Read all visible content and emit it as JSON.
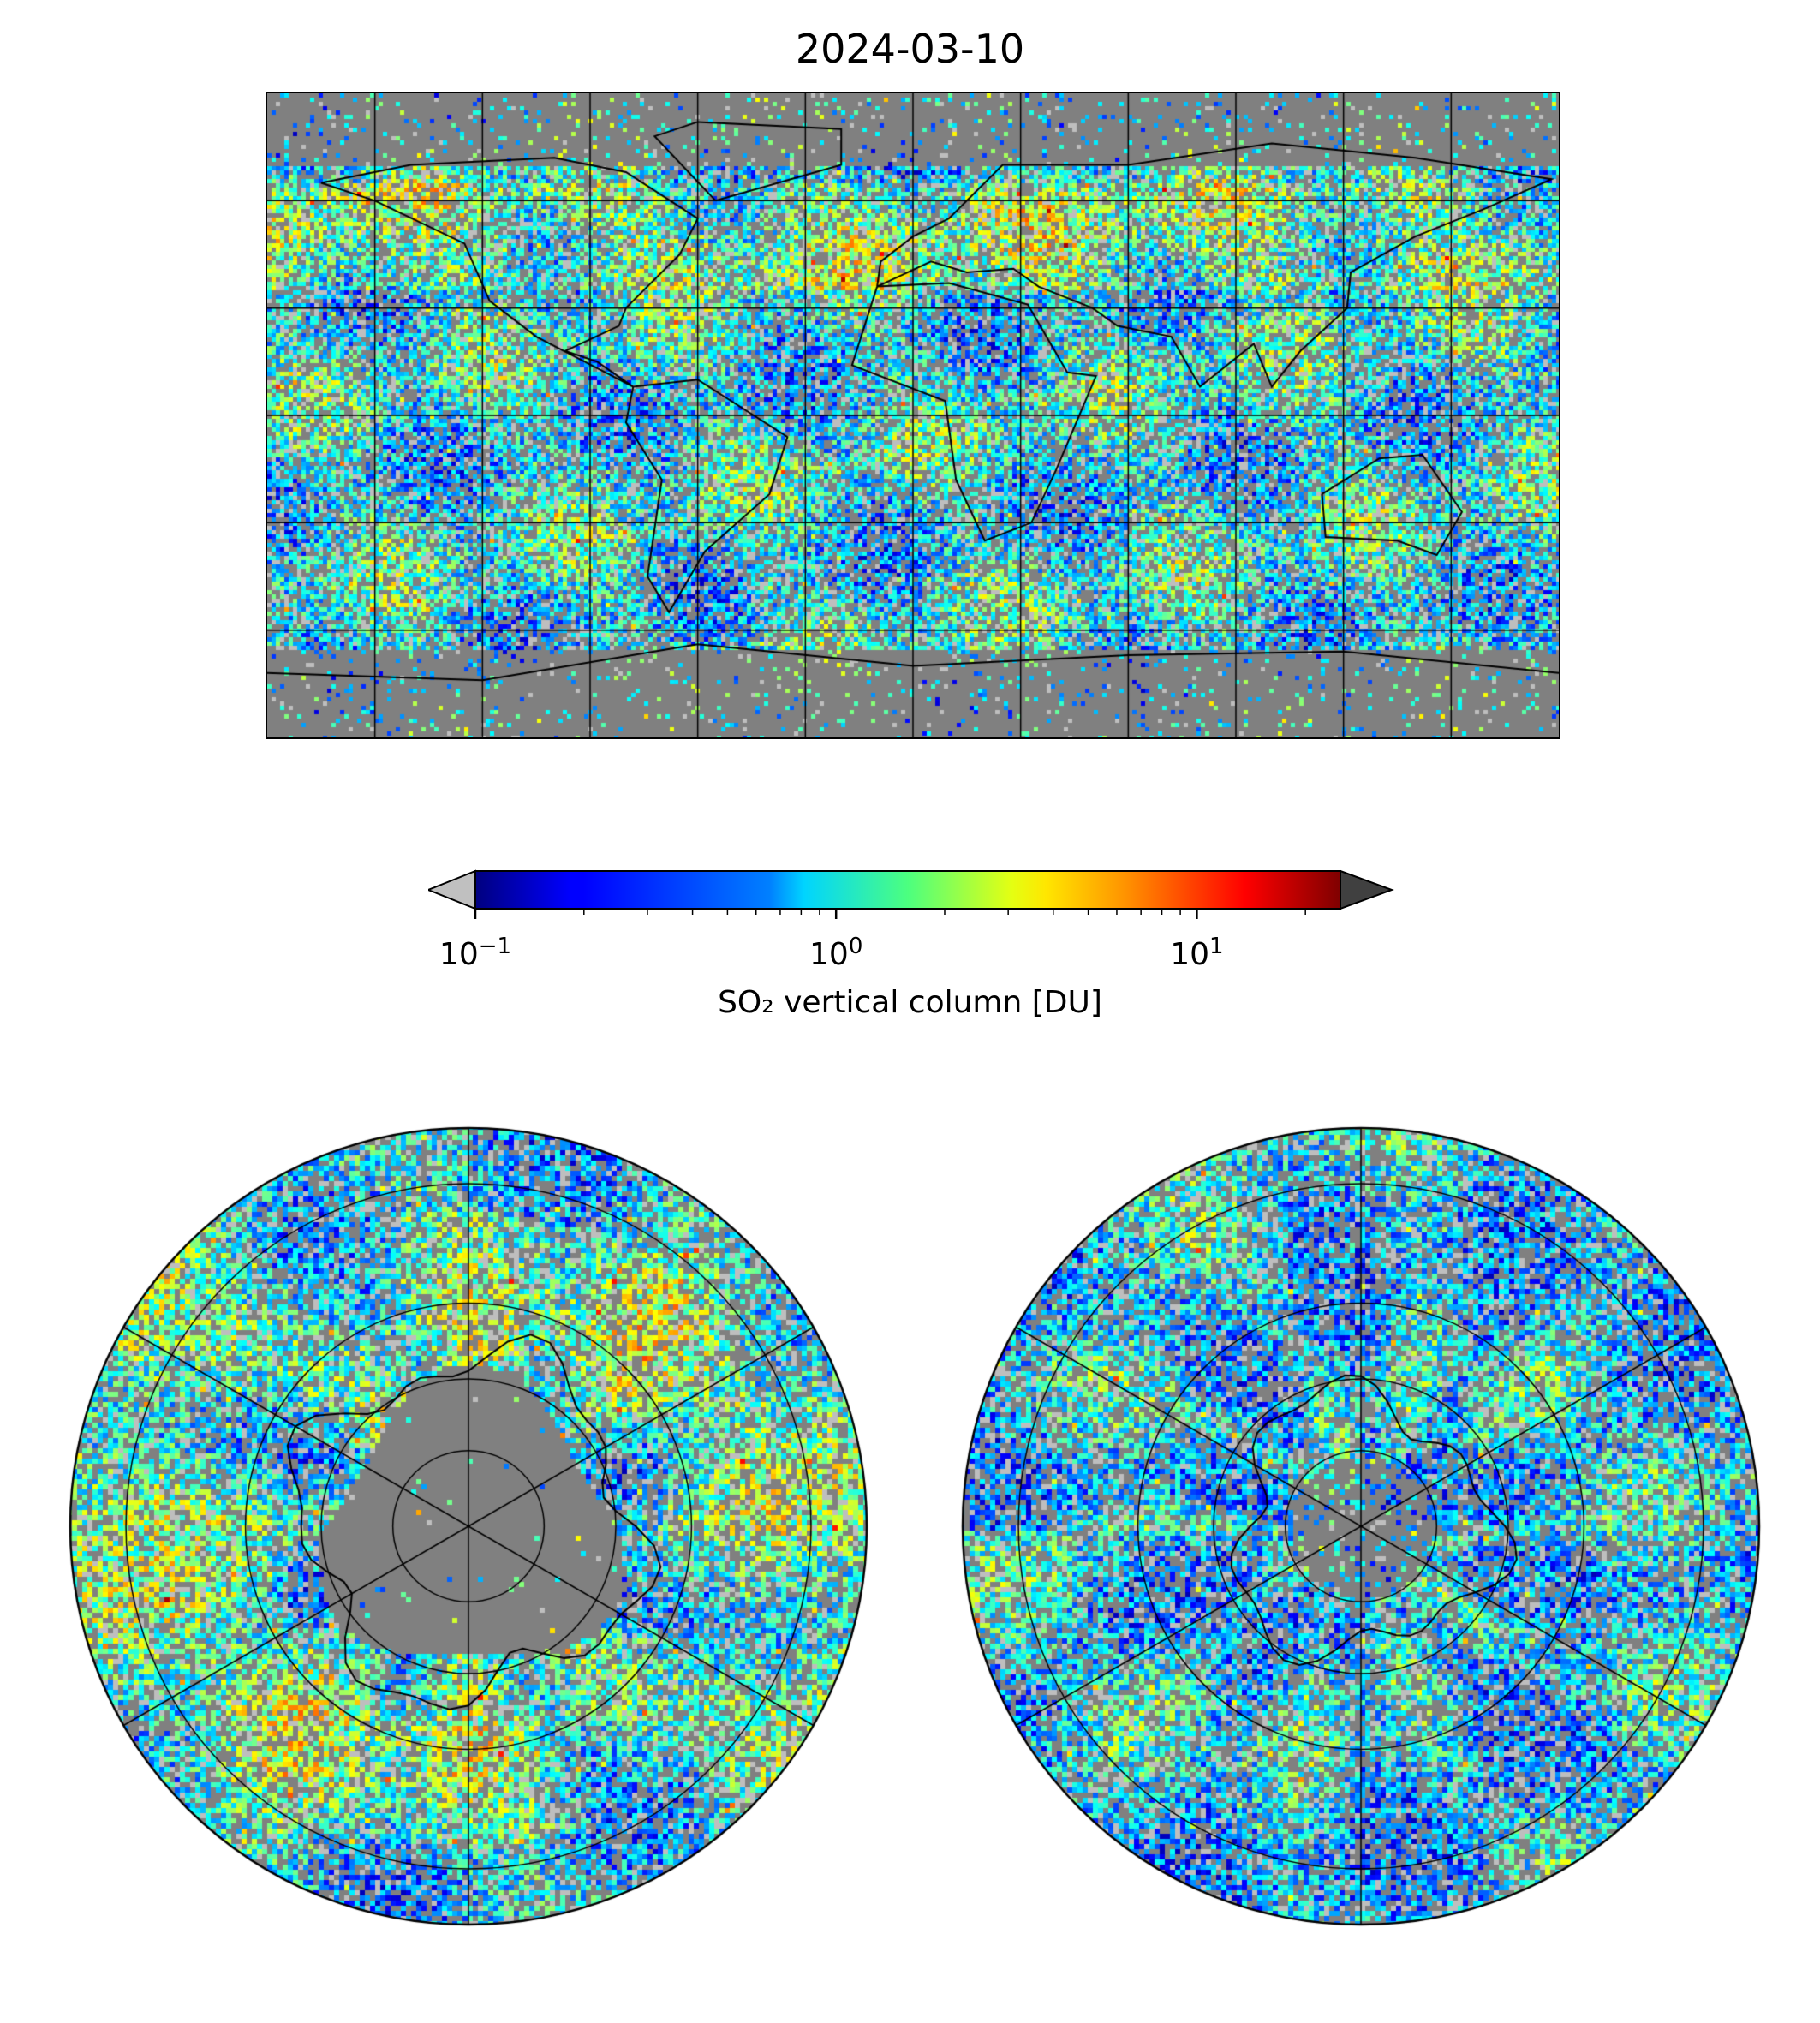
{
  "title": "2024-03-10",
  "colorbar": {
    "label": "SO₂ vertical column [DU]",
    "ticks": [
      {
        "base": "10",
        "exp": "−1",
        "value": 0.1
      },
      {
        "base": "10",
        "exp": "0",
        "value": 1
      },
      {
        "base": "10",
        "exp": "1",
        "value": 10
      }
    ],
    "range": [
      0.1,
      25
    ],
    "scale": "log",
    "colormap": "jet",
    "under_color": "#c0c0c0",
    "over_color": "#404040",
    "extend": "both"
  },
  "maps": [
    {
      "name": "global",
      "projection": "plate-carree",
      "background": "#808080"
    },
    {
      "name": "north-polar",
      "projection": "north-polar-stereographic",
      "background": "#808080"
    },
    {
      "name": "south-polar",
      "projection": "south-polar-stereographic",
      "background": "#808080"
    }
  ]
}
